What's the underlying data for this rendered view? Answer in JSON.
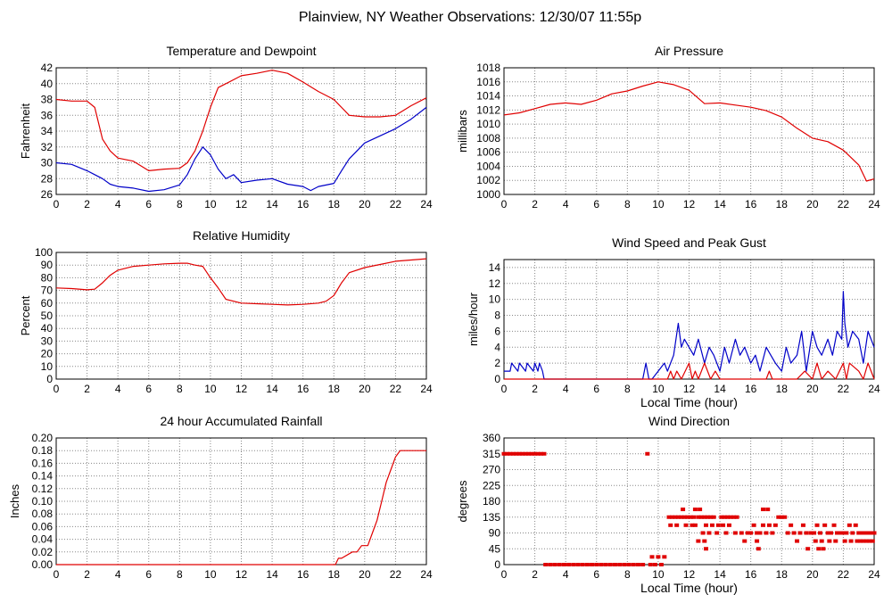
{
  "page": {
    "title": "Plainview, NY Weather Observations: 12/30/07 11:55p"
  },
  "colors": {
    "red": "#e00000",
    "blue": "#0000c8",
    "grid": "#888888"
  },
  "chart_data": [
    {
      "type": "line",
      "title": "Temperature and Dewpoint",
      "xlabel": "",
      "ylabel": "Fahrenheit",
      "xlim": [
        0,
        24
      ],
      "ylim": [
        26,
        42
      ],
      "xticks": [
        0,
        2,
        4,
        6,
        8,
        10,
        12,
        14,
        16,
        18,
        20,
        22,
        24
      ],
      "yticks": [
        26,
        28,
        30,
        32,
        34,
        36,
        38,
        40,
        42
      ],
      "grid": true,
      "series": [
        {
          "color": "#e00000",
          "x": [
            0,
            1,
            2,
            2.5,
            3,
            3.5,
            4,
            5,
            6,
            7,
            8,
            8.5,
            9,
            9.5,
            10,
            10.5,
            11,
            12,
            13,
            14,
            15,
            16,
            17,
            18,
            19,
            20,
            21,
            22,
            23,
            24
          ],
          "y": [
            38,
            37.8,
            37.8,
            37,
            33,
            31.5,
            30.6,
            30.2,
            29,
            29.2,
            29.3,
            30,
            31.5,
            34,
            37,
            39.5,
            40,
            41,
            41.3,
            41.7,
            41.3,
            40.2,
            39,
            38,
            36,
            35.8,
            35.8,
            36,
            37.2,
            38.2
          ]
        },
        {
          "color": "#0000c8",
          "x": [
            0,
            1,
            2,
            2.5,
            3,
            3.5,
            4,
            5,
            6,
            7,
            8,
            8.5,
            9,
            9.5,
            10,
            10.5,
            11,
            11.5,
            12,
            13,
            14,
            15,
            16,
            16.5,
            17,
            18,
            18.5,
            19,
            20,
            21,
            22,
            23,
            24
          ],
          "y": [
            30,
            29.8,
            29,
            28.5,
            28,
            27.3,
            27,
            26.8,
            26.4,
            26.6,
            27.2,
            28.5,
            30.5,
            32,
            31,
            29.2,
            28,
            28.5,
            27.5,
            27.8,
            28,
            27.3,
            27,
            26.5,
            27,
            27.4,
            29,
            30.5,
            32.5,
            33.4,
            34.3,
            35.5,
            37
          ]
        }
      ]
    },
    {
      "type": "line",
      "title": "Air Pressure",
      "xlabel": "",
      "ylabel": "millibars",
      "xlim": [
        0,
        24
      ],
      "ylim": [
        1000,
        1018
      ],
      "xticks": [
        0,
        2,
        4,
        6,
        8,
        10,
        12,
        14,
        16,
        18,
        20,
        22,
        24
      ],
      "yticks": [
        1000,
        1002,
        1004,
        1006,
        1008,
        1010,
        1012,
        1014,
        1016,
        1018
      ],
      "grid": true,
      "series": [
        {
          "color": "#e00000",
          "x": [
            0,
            1,
            2,
            3,
            4,
            5,
            6,
            7,
            8,
            9,
            10,
            11,
            12,
            13,
            14,
            15,
            16,
            17,
            18,
            19,
            20,
            21,
            22,
            23,
            23.5,
            24
          ],
          "y": [
            1011.3,
            1011.6,
            1012.2,
            1012.8,
            1013,
            1012.8,
            1013.4,
            1014.3,
            1014.7,
            1015.4,
            1016,
            1015.6,
            1014.8,
            1012.9,
            1013,
            1012.7,
            1012.4,
            1011.9,
            1011,
            1009.4,
            1008,
            1007.5,
            1006.3,
            1004.2,
            1001.9,
            1002.2
          ]
        }
      ]
    },
    {
      "type": "line",
      "title": "Relative Humidity",
      "xlabel": "",
      "ylabel": "Percent",
      "xlim": [
        0,
        24
      ],
      "ylim": [
        0,
        100
      ],
      "xticks": [
        0,
        2,
        4,
        6,
        8,
        10,
        12,
        14,
        16,
        18,
        20,
        22,
        24
      ],
      "yticks": [
        0,
        10,
        20,
        30,
        40,
        50,
        60,
        70,
        80,
        90,
        100
      ],
      "grid": true,
      "series": [
        {
          "color": "#e00000",
          "x": [
            0,
            1,
            2,
            2.5,
            3,
            3.5,
            4,
            5,
            6,
            7,
            8,
            8.5,
            9,
            9.5,
            10,
            10.5,
            11,
            12,
            13,
            14,
            15,
            16,
            17,
            17.5,
            18,
            18.5,
            19,
            20,
            21,
            22,
            23,
            24
          ],
          "y": [
            72,
            71.5,
            70.5,
            71,
            76,
            82,
            86,
            89,
            90,
            91,
            91.5,
            91.5,
            90,
            89,
            80,
            72,
            63,
            60,
            59.5,
            59,
            58.5,
            59,
            60,
            61.5,
            66,
            76,
            84,
            88,
            90.5,
            93,
            94,
            95
          ]
        }
      ]
    },
    {
      "type": "line",
      "title": "Wind Speed and Peak Gust",
      "xlabel": "Local Time (hour)",
      "ylabel": "miles/hour",
      "xlim": [
        0,
        24
      ],
      "ylim": [
        0,
        15
      ],
      "xticks": [
        0,
        2,
        4,
        6,
        8,
        10,
        12,
        14,
        16,
        18,
        20,
        22,
        24
      ],
      "yticks": [
        0,
        2,
        4,
        6,
        8,
        10,
        12,
        14
      ],
      "grid": true,
      "series": [
        {
          "color": "#0000c8",
          "x": [
            0,
            0.4,
            0.5,
            0.9,
            1,
            1.4,
            1.5,
            1.9,
            2,
            2.2,
            2.3,
            2.5,
            2.6,
            9,
            9.2,
            9.4,
            9.6,
            10,
            10.4,
            10.6,
            11,
            11.3,
            11.5,
            11.7,
            12,
            12.3,
            12.6,
            13,
            13.3,
            13.6,
            14,
            14.3,
            14.6,
            15,
            15.3,
            15.6,
            16,
            16.3,
            16.6,
            17,
            17.3,
            17.6,
            18,
            18.3,
            18.6,
            19,
            19.3,
            19.6,
            20,
            20.3,
            20.6,
            21,
            21.3,
            21.6,
            21.9,
            22,
            22.1,
            22.3,
            22.6,
            23,
            23.3,
            23.6,
            24
          ],
          "y": [
            1,
            1,
            2,
            1,
            2,
            1,
            2,
            1,
            2,
            1,
            2,
            1,
            0,
            0,
            2,
            0,
            0,
            1,
            2,
            1,
            3,
            7,
            4,
            5,
            4,
            3,
            5,
            2,
            4,
            3,
            1,
            4,
            2,
            5,
            3,
            4,
            2,
            3,
            1,
            4,
            3,
            2,
            1,
            4,
            2,
            3,
            6,
            1,
            6,
            4,
            3,
            5,
            3,
            6,
            5,
            11,
            7,
            4,
            6,
            5,
            2,
            6,
            4
          ]
        },
        {
          "color": "#e00000",
          "x": [
            0,
            10.6,
            10.8,
            11,
            11.2,
            11.5,
            12,
            12.2,
            12.4,
            12.6,
            13,
            13.4,
            13.7,
            14,
            17,
            17.2,
            17.4,
            19,
            19.5,
            20,
            20.3,
            20.6,
            21,
            21.5,
            22,
            22.2,
            22.4,
            23,
            23.3,
            23.6,
            24
          ],
          "y": [
            0,
            0,
            1,
            0,
            1,
            0,
            2,
            0,
            1,
            0,
            2,
            0,
            1,
            0,
            0,
            1,
            0,
            0,
            1,
            0,
            2,
            0,
            1,
            0,
            2,
            0,
            2,
            1,
            0,
            2,
            0
          ]
        }
      ]
    },
    {
      "type": "line",
      "title": "24 hour Accumulated Rainfall",
      "xlabel": "",
      "ylabel": "Inches",
      "xlim": [
        0,
        24
      ],
      "ylim": [
        0,
        0.2
      ],
      "xticks": [
        0,
        2,
        4,
        6,
        8,
        10,
        12,
        14,
        16,
        18,
        20,
        22,
        24
      ],
      "yticks": [
        0.0,
        0.02,
        0.04,
        0.06,
        0.08,
        0.1,
        0.12,
        0.14,
        0.16,
        0.18,
        0.2
      ],
      "ytick_labels": [
        "0.00",
        "0.02",
        "0.04",
        "0.06",
        "0.08",
        "0.10",
        "0.12",
        "0.14",
        "0.16",
        "0.18",
        "0.20"
      ],
      "grid": true,
      "series": [
        {
          "color": "#e00000",
          "x": [
            0,
            18.1,
            18.3,
            18.5,
            19.2,
            19.5,
            19.8,
            20.2,
            20.5,
            20.8,
            21.1,
            21.4,
            21.7,
            22,
            22.3,
            24
          ],
          "y": [
            0,
            0,
            0.01,
            0.01,
            0.02,
            0.02,
            0.03,
            0.03,
            0.05,
            0.07,
            0.1,
            0.13,
            0.15,
            0.17,
            0.18,
            0.18
          ]
        }
      ]
    },
    {
      "type": "scatter",
      "title": "Wind Direction",
      "xlabel": "Local Time (hour)",
      "ylabel": "degrees",
      "xlim": [
        0,
        24
      ],
      "ylim": [
        0,
        360
      ],
      "xticks": [
        0,
        2,
        4,
        6,
        8,
        10,
        12,
        14,
        16,
        18,
        20,
        22,
        24
      ],
      "yticks": [
        0,
        45,
        90,
        135,
        180,
        225,
        270,
        315,
        360
      ],
      "grid": true,
      "series": [
        {
          "color": "#e00000",
          "x": [
            0,
            0.2,
            0.4,
            0.6,
            0.8,
            1,
            1.2,
            1.4,
            1.6,
            1.8,
            2,
            2.2,
            2.4,
            2.6,
            9.3,
            2.7,
            3,
            3.3,
            3.6,
            3.9,
            4.2,
            4.5,
            4.8,
            5.1,
            5.4,
            5.7,
            6,
            6.3,
            6.6,
            6.9,
            7.2,
            7.5,
            7.8,
            8.1,
            8.4,
            8.7,
            9,
            9.5,
            9.8,
            10.2,
            9.6,
            10,
            10.4,
            10.7,
            10.9,
            11.1,
            11.3,
            11.5,
            11.7,
            11.9,
            12.1,
            12.3,
            12.6,
            12.8,
            13,
            13.2,
            13.4,
            13.6,
            14.1,
            14.3,
            14.5,
            14.7,
            14.9,
            15.1,
            17.8,
            18,
            18.2,
            10.8,
            11.2,
            11.8,
            12.2,
            12.4,
            13.1,
            13.5,
            13.9,
            14.2,
            14.6,
            16.2,
            16.8,
            17.2,
            17.6,
            18.6,
            19.4,
            20.3,
            20.8,
            21.4,
            22.4,
            22.8,
            12.9,
            13.3,
            13.8,
            14.4,
            15,
            15.4,
            15.8,
            16,
            16.4,
            16.6,
            17,
            17.4,
            18.4,
            18.8,
            19.2,
            19.6,
            19.9,
            20.1,
            20.5,
            21,
            21.2,
            21.6,
            21.8,
            22,
            22.2,
            22.6,
            23,
            23.2,
            23.4,
            23.6,
            23.8,
            24,
            12.6,
            13,
            15.6,
            16.4,
            19,
            20.2,
            20.6,
            21.1,
            21.5,
            22.1,
            22.5,
            22.9,
            23.1,
            23.3,
            23.5,
            23.7,
            23.9,
            13.1,
            16.5,
            19.7,
            20.4,
            20.7,
            11.6,
            12.4,
            12.7,
            16.8,
            17.1
          ],
          "y": [
            315,
            315,
            315,
            315,
            315,
            315,
            315,
            315,
            315,
            315,
            315,
            315,
            315,
            315,
            315,
            0,
            0,
            0,
            0,
            0,
            0,
            0,
            0,
            0,
            0,
            0,
            0,
            0,
            0,
            0,
            0,
            0,
            0,
            0,
            0,
            0,
            0,
            0,
            0,
            0,
            22,
            22,
            22,
            135,
            135,
            135,
            135,
            135,
            135,
            135,
            135,
            135,
            135,
            135,
            135,
            135,
            135,
            135,
            135,
            135,
            135,
            135,
            135,
            135,
            135,
            135,
            135,
            112,
            112,
            112,
            112,
            112,
            112,
            112,
            112,
            112,
            112,
            112,
            112,
            112,
            112,
            112,
            112,
            112,
            112,
            112,
            112,
            112,
            90,
            90,
            90,
            90,
            90,
            90,
            90,
            90,
            90,
            90,
            90,
            90,
            90,
            90,
            90,
            90,
            90,
            90,
            90,
            90,
            90,
            90,
            90,
            90,
            90,
            90,
            90,
            90,
            90,
            90,
            90,
            90,
            67,
            67,
            67,
            67,
            67,
            67,
            67,
            67,
            67,
            67,
            67,
            67,
            67,
            67,
            67,
            67,
            67,
            45,
            45,
            45,
            45,
            45,
            157,
            157,
            157,
            157,
            157
          ]
        }
      ]
    }
  ]
}
